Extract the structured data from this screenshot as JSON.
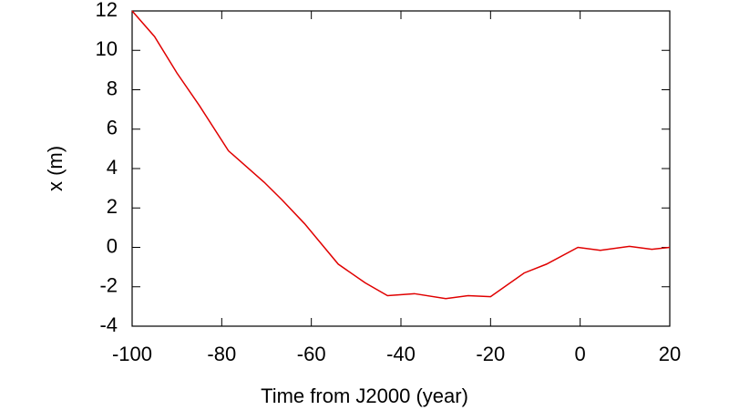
{
  "chart_data": {
    "type": "line",
    "x_label": "Time from J2000 (year)",
    "y_label": "x (m)",
    "x": [
      -100,
      -95,
      -90,
      -85,
      -78.5,
      -70.5,
      -66.5,
      -61.5,
      -54,
      -48,
      -43,
      -37,
      -30,
      -25,
      -20,
      -12.5,
      -7.5,
      -0.5,
      4.5,
      11,
      16,
      20
    ],
    "series": [
      {
        "color": "#e00000",
        "values": [
          12,
          10.7,
          8.85,
          7.2,
          4.9,
          3.3,
          2.4,
          1.2,
          -0.85,
          -1.8,
          -2.45,
          -2.35,
          -2.6,
          -2.45,
          -2.5,
          -1.3,
          -0.85,
          0,
          -0.15,
          0.05,
          -0.1,
          0
        ]
      }
    ],
    "xlim": [
      -100,
      20
    ],
    "xticks": [
      -100,
      -80,
      -60,
      -40,
      -20,
      0,
      20
    ],
    "ylim": [
      -4,
      12
    ],
    "yticks": [
      -4,
      -2,
      0,
      2,
      4,
      6,
      8,
      10,
      12
    ]
  }
}
